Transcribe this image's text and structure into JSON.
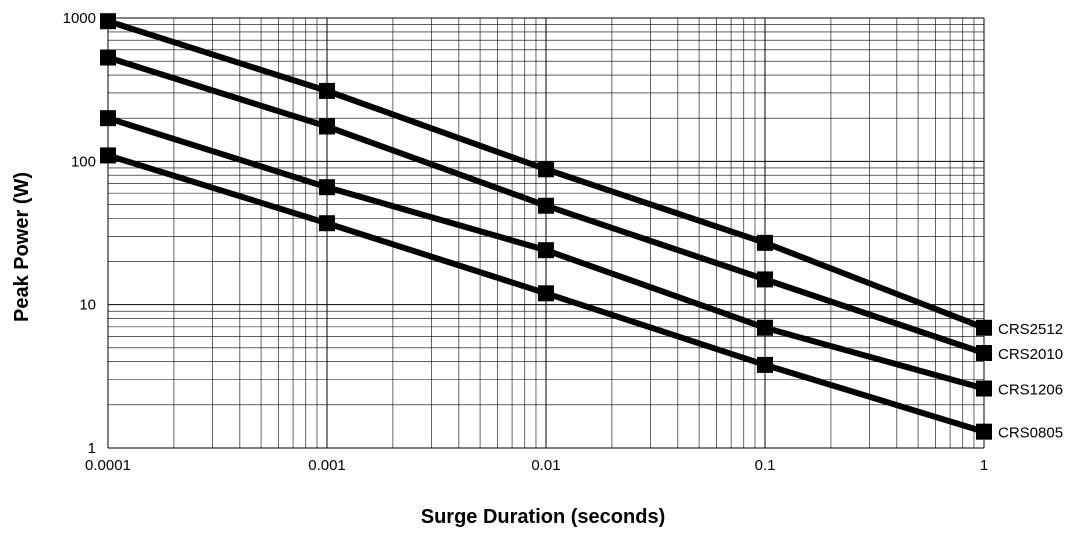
{
  "chart_data": {
    "type": "line",
    "title": "",
    "xlabel": "Surge Duration (seconds)",
    "ylabel": "Peak Power (W)",
    "x_scale": "log",
    "y_scale": "log",
    "xlim": [
      0.0001,
      1
    ],
    "ylim": [
      1,
      1000
    ],
    "grid": true,
    "x_ticks": [
      0.0001,
      0.001,
      0.01,
      0.1,
      1
    ],
    "x_tick_labels": [
      "0.0001",
      "0.001",
      "0.01",
      "0.1",
      "1"
    ],
    "y_ticks": [
      1,
      10,
      100,
      1000
    ],
    "y_tick_labels": [
      "1",
      "10",
      "100",
      "1000"
    ],
    "x": [
      0.0001,
      0.001,
      0.01,
      0.1,
      1
    ],
    "series": [
      {
        "name": "CRS2512",
        "values": [
          950,
          310,
          88,
          27,
          6.9
        ]
      },
      {
        "name": "CRS2010",
        "values": [
          530,
          175,
          49,
          15,
          4.6
        ]
      },
      {
        "name": "CRS1206",
        "values": [
          200,
          66,
          24,
          6.9,
          2.6
        ]
      },
      {
        "name": "CRS0805",
        "values": [
          110,
          37,
          12,
          3.8,
          1.3
        ]
      }
    ]
  }
}
